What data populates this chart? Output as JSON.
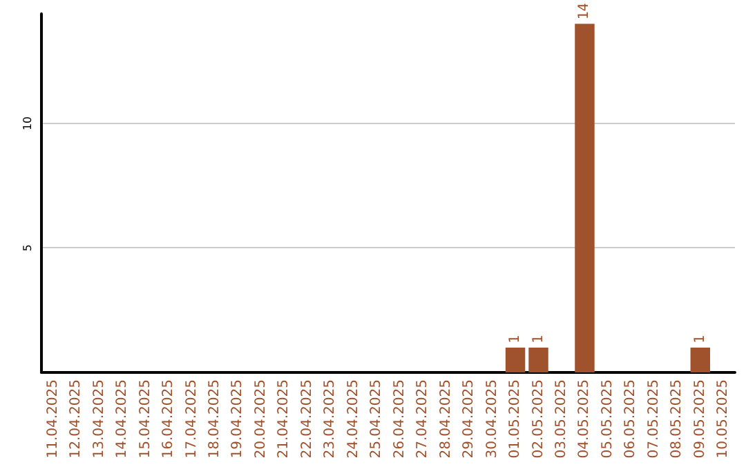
{
  "chart_data": {
    "type": "bar",
    "categories": [
      "11.04.2025",
      "12.04.2025",
      "13.04.2025",
      "14.04.2025",
      "15.04.2025",
      "16.04.2025",
      "17.04.2025",
      "18.04.2025",
      "19.04.2025",
      "20.04.2025",
      "21.04.2025",
      "22.04.2025",
      "23.04.2025",
      "24.04.2025",
      "25.04.2025",
      "26.04.2025",
      "27.04.2025",
      "28.04.2025",
      "29.04.2025",
      "30.04.2025",
      "01.05.2025",
      "02.05.2025",
      "03.05.2025",
      "04.05.2025",
      "05.05.2025",
      "06.05.2025",
      "07.05.2025",
      "08.05.2025",
      "09.05.2025",
      "10.05.2025"
    ],
    "values": [
      0,
      0,
      0,
      0,
      0,
      0,
      0,
      0,
      0,
      0,
      0,
      0,
      0,
      0,
      0,
      0,
      0,
      0,
      0,
      0,
      1,
      1,
      0,
      14,
      0,
      0,
      0,
      0,
      1,
      0
    ],
    "value_labels": [
      null,
      null,
      null,
      null,
      null,
      null,
      null,
      null,
      null,
      null,
      null,
      null,
      null,
      null,
      null,
      null,
      null,
      null,
      null,
      null,
      "1",
      "1",
      null,
      "14",
      null,
      null,
      null,
      null,
      "1",
      null
    ],
    "color": "#a0522d",
    "ylim": [
      0,
      14.4
    ],
    "yticks": [
      5,
      10
    ],
    "grid": "y"
  }
}
